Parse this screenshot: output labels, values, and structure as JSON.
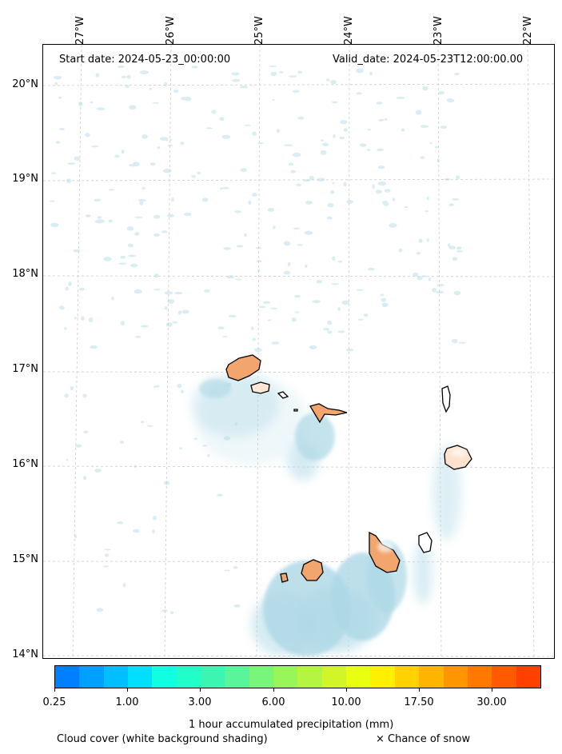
{
  "map": {
    "header_left": "Start date: 2024-05-23_00:00:00",
    "header_right": "Valid_date: 2024-05-23T12:00:00.00",
    "lon_labels": [
      "27°W",
      "26°W",
      "25°W",
      "24°W",
      "23°W",
      "22°W"
    ],
    "lat_labels": [
      "20°N",
      "19°N",
      "18°N",
      "17°N",
      "16°N",
      "15°N",
      "14°N"
    ],
    "land_color": "#f2a56c",
    "cloud_color": "#add8e6",
    "gridline_color": "#cccccc"
  },
  "colorbar": {
    "title": "1 hour accumulated precipitation (mm)",
    "tick_labels": [
      "0.25",
      "1.00",
      "3.00",
      "6.00",
      "10.00",
      "17.50",
      "30.00"
    ],
    "colors": [
      "#0080ff",
      "#00a0ff",
      "#00bfff",
      "#00dfff",
      "#10ffe0",
      "#20ffc8",
      "#3cf5b0",
      "#5af59a",
      "#78f57a",
      "#98f55a",
      "#b4f542",
      "#d2f528",
      "#e8ff10",
      "#fff000",
      "#ffd200",
      "#ffb400",
      "#ff9600",
      "#ff7800",
      "#ff5a00",
      "#ff4000"
    ]
  },
  "footer": {
    "cloud_note": "Cloud cover (white background shading)",
    "snow_note": "× Chance of snow"
  }
}
